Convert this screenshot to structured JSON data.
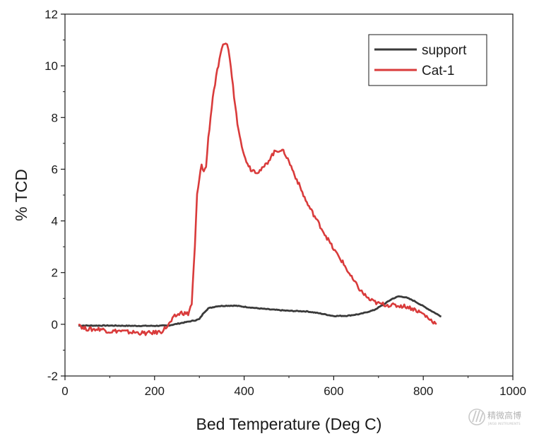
{
  "chart_data": {
    "type": "line",
    "title": "",
    "xlabel": "Bed Temperature (Deg C)",
    "ylabel": "% TCD",
    "xlim": [
      0,
      1000
    ],
    "ylim": [
      -2,
      12
    ],
    "xticks": [
      0,
      200,
      400,
      600,
      800,
      1000
    ],
    "yticks": [
      -2,
      0,
      2,
      4,
      6,
      8,
      10,
      12
    ],
    "xtick_labels": [
      "0",
      "200",
      "400",
      "600",
      "800",
      "1000"
    ],
    "ytick_labels": [
      "-2",
      "0",
      "2",
      "4",
      "6",
      "8",
      "10",
      "12"
    ],
    "grid": false,
    "legend_position": "top-right",
    "series": [
      {
        "name": "support",
        "color": "#3a3a3a",
        "x": [
          30,
          60,
          100,
          150,
          200,
          230,
          260,
          290,
          300,
          310,
          320,
          340,
          360,
          380,
          400,
          430,
          460,
          500,
          540,
          570,
          600,
          630,
          660,
          690,
          710,
          730,
          745,
          760,
          780,
          800,
          820,
          840
        ],
        "y": [
          -0.05,
          -0.05,
          -0.05,
          -0.06,
          -0.06,
          -0.05,
          0.05,
          0.15,
          0.2,
          0.45,
          0.62,
          0.7,
          0.72,
          0.72,
          0.68,
          0.62,
          0.57,
          0.52,
          0.5,
          0.42,
          0.32,
          0.33,
          0.4,
          0.55,
          0.75,
          0.98,
          1.08,
          1.05,
          0.9,
          0.7,
          0.5,
          0.3
        ]
      },
      {
        "name": "Cat-1",
        "color": "#d93b3b",
        "x": [
          30,
          40,
          60,
          80,
          100,
          120,
          140,
          160,
          180,
          200,
          215,
          230,
          245,
          260,
          275,
          283,
          290,
          295,
          300,
          305,
          310,
          315,
          320,
          330,
          340,
          350,
          356,
          362,
          368,
          375,
          385,
          400,
          415,
          430,
          440,
          450,
          460,
          470,
          480,
          490,
          500,
          520,
          540,
          560,
          580,
          600,
          620,
          640,
          660,
          680,
          700,
          720,
          740,
          760,
          780,
          800,
          815,
          830
        ],
        "y": [
          0.05,
          -0.15,
          -0.2,
          -0.18,
          -0.28,
          -0.25,
          -0.3,
          -0.32,
          -0.35,
          -0.32,
          -0.28,
          -0.05,
          0.3,
          0.45,
          0.4,
          0.8,
          3.0,
          5.0,
          5.6,
          6.2,
          5.9,
          6.1,
          7.2,
          8.8,
          9.8,
          10.6,
          10.9,
          10.85,
          10.3,
          9.2,
          7.8,
          6.5,
          6.0,
          5.9,
          6.0,
          6.2,
          6.5,
          6.7,
          6.75,
          6.65,
          6.3,
          5.5,
          4.7,
          4.1,
          3.5,
          2.9,
          2.4,
          1.8,
          1.3,
          0.95,
          0.8,
          0.75,
          0.72,
          0.7,
          0.58,
          0.4,
          0.18,
          0.02
        ]
      }
    ]
  },
  "watermark": {
    "title": "精微高博",
    "subtitle": "JWGB INSTRUMENTS"
  }
}
